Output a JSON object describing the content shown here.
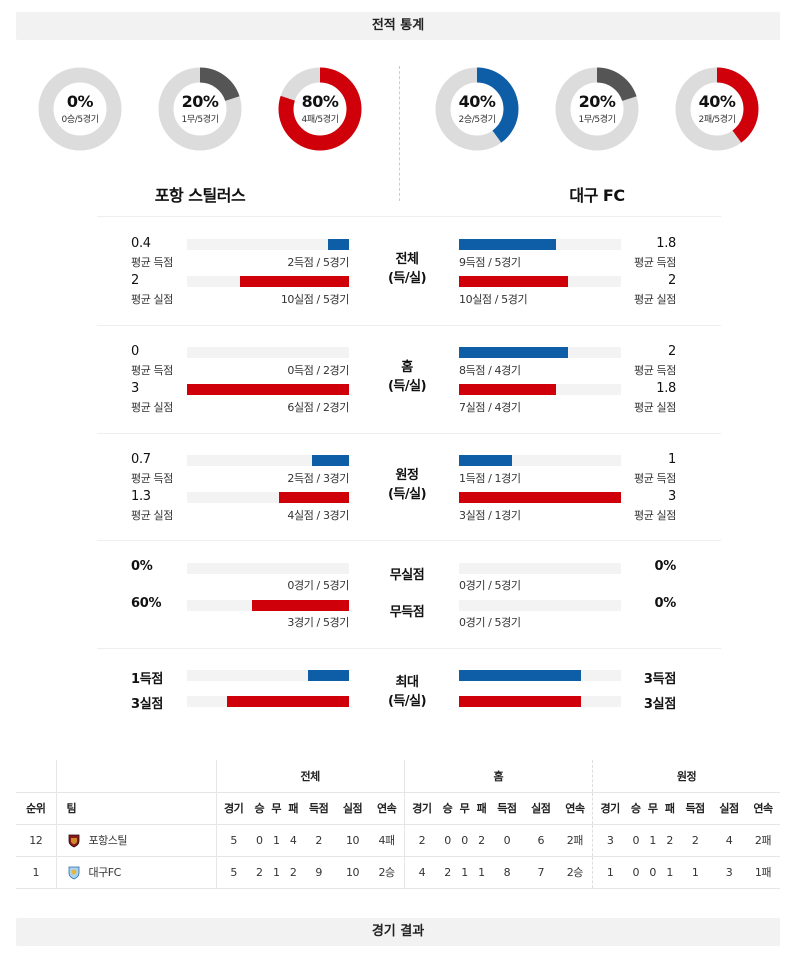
{
  "header_record": "전적 통계",
  "header_results": "경기 결과",
  "home": {
    "name": "포항 스틸러스",
    "donuts": [
      {
        "pct": "0%",
        "sub": "0승/5경기",
        "value": 0,
        "color": "#0d5ea6"
      },
      {
        "pct": "20%",
        "sub": "1무/5경기",
        "value": 0.2,
        "color": "#555555"
      },
      {
        "pct": "80%",
        "sub": "4패/5경기",
        "value": 0.8,
        "color": "#d0000b"
      }
    ]
  },
  "away": {
    "name": "대구 FC",
    "donuts": [
      {
        "pct": "40%",
        "sub": "2승/5경기",
        "value": 0.4,
        "color": "#0d5ea6"
      },
      {
        "pct": "20%",
        "sub": "1무/5경기",
        "value": 0.2,
        "color": "#555555"
      },
      {
        "pct": "40%",
        "sub": "2패/5경기",
        "value": 0.4,
        "color": "#d0000b"
      }
    ]
  },
  "label_avg_for": "평균 득점",
  "label_avg_against": "평균 실점",
  "groups": [
    {
      "center": [
        "전체",
        "(득/실)"
      ],
      "home_for": {
        "num": "0.4",
        "note": "2득점 / 5경기",
        "frac": 0.13
      },
      "home_against": {
        "num": "2",
        "note": "10실점 / 5경기",
        "frac": 0.67
      },
      "away_for": {
        "num": "1.8",
        "note": "9득점 / 5경기",
        "frac": 0.6
      },
      "away_against": {
        "num": "2",
        "note": "10실점 / 5경기",
        "frac": 0.67
      }
    },
    {
      "center": [
        "홈",
        "(득/실)"
      ],
      "home_for": {
        "num": "0",
        "note": "0득점 / 2경기",
        "frac": 0
      },
      "home_against": {
        "num": "3",
        "note": "6실점 / 2경기",
        "frac": 1
      },
      "away_for": {
        "num": "2",
        "note": "8득점 / 4경기",
        "frac": 0.67
      },
      "away_against": {
        "num": "1.8",
        "note": "7실점 / 4경기",
        "frac": 0.6
      }
    },
    {
      "center": [
        "원정",
        "(득/실)"
      ],
      "home_for": {
        "num": "0.7",
        "note": "2득점 / 3경기",
        "frac": 0.23
      },
      "home_against": {
        "num": "1.3",
        "note": "4실점 / 3경기",
        "frac": 0.43
      },
      "away_for": {
        "num": "1",
        "note": "1득점 / 1경기",
        "frac": 0.33
      },
      "away_against": {
        "num": "3",
        "note": "3실점 / 1경기",
        "frac": 1
      }
    }
  ],
  "clean": {
    "label1": "무실점",
    "label2": "무득점",
    "home_cs": {
      "num": "0%",
      "note": "0경기 / 5경기",
      "frac": 0
    },
    "home_fs": {
      "num": "60%",
      "note": "3경기 / 5경기",
      "frac": 0.6
    },
    "away_cs": {
      "num": "0%",
      "note": "0경기 / 5경기",
      "frac": 0
    },
    "away_fs": {
      "num": "0%",
      "note": "0경기 / 5경기",
      "frac": 0
    }
  },
  "max": {
    "center": [
      "최대",
      "(득/실)"
    ],
    "home_for": {
      "num": "1득점",
      "frac": 0.25
    },
    "home_against": {
      "num": "3실점",
      "frac": 0.75
    },
    "away_for": {
      "num": "3득점",
      "frac": 0.75
    },
    "away_against": {
      "num": "3실점",
      "frac": 0.75
    }
  },
  "standings": {
    "group_headers": [
      "전체",
      "홈",
      "원정"
    ],
    "col_rank": "순위",
    "col_team": "팀",
    "cols": [
      "경기",
      "승",
      "무",
      "패",
      "득점",
      "실점",
      "연속"
    ],
    "rows": [
      {
        "rank": "12",
        "team": "포항스틸",
        "crest_color": "#8a1a1a",
        "total": [
          "5",
          "0",
          "1",
          "4",
          "2",
          "10",
          "4패"
        ],
        "home": [
          "2",
          "0",
          "0",
          "2",
          "0",
          "6",
          "2패"
        ],
        "away": [
          "3",
          "0",
          "1",
          "2",
          "2",
          "4",
          "2패"
        ]
      },
      {
        "rank": "1",
        "team": "대구FC",
        "crest_color": "#6aa8d8",
        "total": [
          "5",
          "2",
          "1",
          "2",
          "9",
          "10",
          "2승"
        ],
        "home": [
          "4",
          "2",
          "1",
          "1",
          "8",
          "7",
          "2승"
        ],
        "away": [
          "1",
          "0",
          "0",
          "1",
          "1",
          "3",
          "1패"
        ]
      }
    ]
  }
}
